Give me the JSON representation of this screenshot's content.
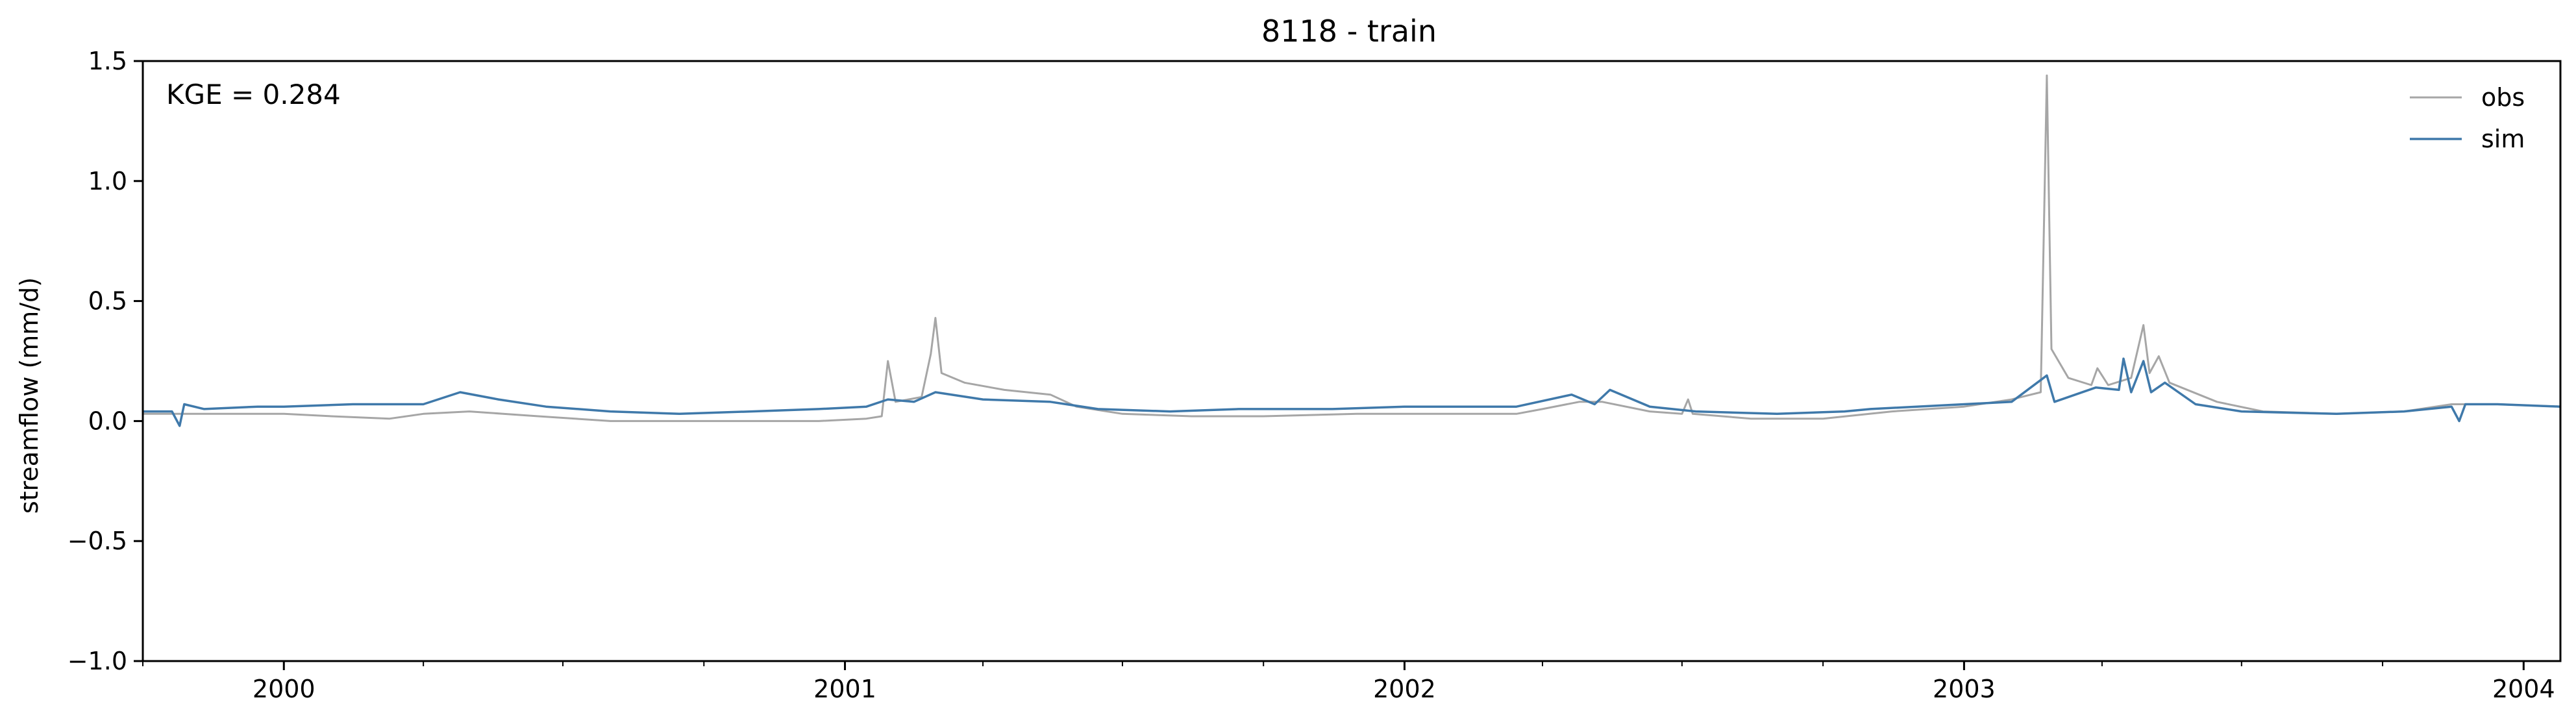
{
  "chart_data": {
    "type": "line",
    "title": "8118 - train",
    "xlabel": "",
    "ylabel": "streamflow (mm/d)",
    "annotation": "KGE = 0.284",
    "legend_position": "top-right",
    "grid": false,
    "xlim": [
      "1999-10-01",
      "2004-01-25"
    ],
    "ylim": [
      -1.0,
      1.5
    ],
    "xticks": [
      {
        "date": "2000-01-01",
        "label": "2000"
      },
      {
        "date": "2001-01-01",
        "label": "2001"
      },
      {
        "date": "2002-01-01",
        "label": "2002"
      },
      {
        "date": "2003-01-01",
        "label": "2003"
      },
      {
        "date": "2004-01-01",
        "label": "2004"
      }
    ],
    "yticks": [
      {
        "value": -1.0,
        "label": "−1.0"
      },
      {
        "value": -0.5,
        "label": "−0.5"
      },
      {
        "value": 0.0,
        "label": "0.0"
      },
      {
        "value": 0.5,
        "label": "0.5"
      },
      {
        "value": 1.0,
        "label": "1.0"
      },
      {
        "value": 1.5,
        "label": "1.5"
      }
    ],
    "series": [
      {
        "name": "obs",
        "color": "#a6a6a6",
        "points": [
          [
            "1999-10-01",
            0.03
          ],
          [
            "1999-11-15",
            0.03
          ],
          [
            "2000-01-01",
            0.03
          ],
          [
            "2000-02-01",
            0.02
          ],
          [
            "2000-03-10",
            0.01
          ],
          [
            "2000-04-01",
            0.03
          ],
          [
            "2000-05-01",
            0.04
          ],
          [
            "2000-06-15",
            0.02
          ],
          [
            "2000-08-01",
            0.0
          ],
          [
            "2000-09-15",
            0.0
          ],
          [
            "2000-11-01",
            0.0
          ],
          [
            "2000-12-15",
            0.0
          ],
          [
            "2001-01-15",
            0.01
          ],
          [
            "2001-01-25",
            0.02
          ],
          [
            "2001-01-29",
            0.25
          ],
          [
            "2001-02-03",
            0.08
          ],
          [
            "2001-02-20",
            0.1
          ],
          [
            "2001-02-26",
            0.28
          ],
          [
            "2001-03-01",
            0.43
          ],
          [
            "2001-03-05",
            0.2
          ],
          [
            "2001-03-20",
            0.16
          ],
          [
            "2001-04-15",
            0.13
          ],
          [
            "2001-05-15",
            0.11
          ],
          [
            "2001-06-01",
            0.06
          ],
          [
            "2001-07-01",
            0.03
          ],
          [
            "2001-08-15",
            0.02
          ],
          [
            "2001-10-01",
            0.02
          ],
          [
            "2001-12-01",
            0.03
          ],
          [
            "2002-02-01",
            0.03
          ],
          [
            "2002-03-15",
            0.03
          ],
          [
            "2002-04-01",
            0.05
          ],
          [
            "2002-04-25",
            0.08
          ],
          [
            "2002-05-10",
            0.08
          ],
          [
            "2002-06-10",
            0.04
          ],
          [
            "2002-07-01",
            0.03
          ],
          [
            "2002-07-05",
            0.09
          ],
          [
            "2002-07-08",
            0.03
          ],
          [
            "2002-08-15",
            0.01
          ],
          [
            "2002-10-01",
            0.01
          ],
          [
            "2002-11-15",
            0.04
          ],
          [
            "2003-01-01",
            0.06
          ],
          [
            "2003-02-01",
            0.09
          ],
          [
            "2003-02-20",
            0.12
          ],
          [
            "2003-02-24",
            1.44
          ],
          [
            "2003-02-27",
            0.3
          ],
          [
            "2003-03-10",
            0.18
          ],
          [
            "2003-03-25",
            0.15
          ],
          [
            "2003-03-29",
            0.22
          ],
          [
            "2003-04-05",
            0.15
          ],
          [
            "2003-04-20",
            0.18
          ],
          [
            "2003-04-28",
            0.4
          ],
          [
            "2003-05-02",
            0.2
          ],
          [
            "2003-05-08",
            0.27
          ],
          [
            "2003-05-15",
            0.16
          ],
          [
            "2003-06-15",
            0.08
          ],
          [
            "2003-07-15",
            0.04
          ],
          [
            "2003-09-01",
            0.03
          ],
          [
            "2003-10-15",
            0.04
          ],
          [
            "2003-11-15",
            0.07
          ],
          [
            "2003-12-15",
            0.07
          ],
          [
            "2004-01-25",
            0.06
          ]
        ]
      },
      {
        "name": "sim",
        "color": "#3f79aa",
        "points": [
          [
            "1999-10-01",
            0.04
          ],
          [
            "1999-10-20",
            0.04
          ],
          [
            "1999-10-25",
            -0.02
          ],
          [
            "1999-10-28",
            0.07
          ],
          [
            "1999-11-10",
            0.05
          ],
          [
            "1999-12-15",
            0.06
          ],
          [
            "2000-01-01",
            0.06
          ],
          [
            "2000-02-15",
            0.07
          ],
          [
            "2000-04-01",
            0.07
          ],
          [
            "2000-04-25",
            0.12
          ],
          [
            "2000-05-20",
            0.09
          ],
          [
            "2000-06-20",
            0.06
          ],
          [
            "2000-08-01",
            0.04
          ],
          [
            "2000-09-15",
            0.03
          ],
          [
            "2000-11-01",
            0.04
          ],
          [
            "2000-12-15",
            0.05
          ],
          [
            "2001-01-15",
            0.06
          ],
          [
            "2001-01-29",
            0.09
          ],
          [
            "2001-02-15",
            0.08
          ],
          [
            "2001-03-01",
            0.12
          ],
          [
            "2001-04-01",
            0.09
          ],
          [
            "2001-05-15",
            0.08
          ],
          [
            "2001-06-15",
            0.05
          ],
          [
            "2001-08-01",
            0.04
          ],
          [
            "2001-09-15",
            0.05
          ],
          [
            "2001-11-15",
            0.05
          ],
          [
            "2002-01-01",
            0.06
          ],
          [
            "2002-03-15",
            0.06
          ],
          [
            "2002-04-20",
            0.11
          ],
          [
            "2002-05-05",
            0.07
          ],
          [
            "2002-05-15",
            0.13
          ],
          [
            "2002-06-10",
            0.06
          ],
          [
            "2002-07-10",
            0.04
          ],
          [
            "2002-09-01",
            0.03
          ],
          [
            "2002-10-15",
            0.04
          ],
          [
            "2002-11-01",
            0.05
          ],
          [
            "2003-01-01",
            0.07
          ],
          [
            "2003-02-01",
            0.08
          ],
          [
            "2003-02-24",
            0.19
          ],
          [
            "2003-03-01",
            0.08
          ],
          [
            "2003-03-28",
            0.14
          ],
          [
            "2003-04-12",
            0.13
          ],
          [
            "2003-04-15",
            0.26
          ],
          [
            "2003-04-20",
            0.12
          ],
          [
            "2003-04-28",
            0.25
          ],
          [
            "2003-05-03",
            0.12
          ],
          [
            "2003-05-12",
            0.16
          ],
          [
            "2003-06-01",
            0.07
          ],
          [
            "2003-07-01",
            0.04
          ],
          [
            "2003-09-01",
            0.03
          ],
          [
            "2003-10-15",
            0.04
          ],
          [
            "2003-11-15",
            0.06
          ],
          [
            "2003-11-20",
            0.0
          ],
          [
            "2003-11-24",
            0.07
          ],
          [
            "2003-12-15",
            0.07
          ],
          [
            "2004-01-25",
            0.06
          ]
        ]
      }
    ]
  }
}
